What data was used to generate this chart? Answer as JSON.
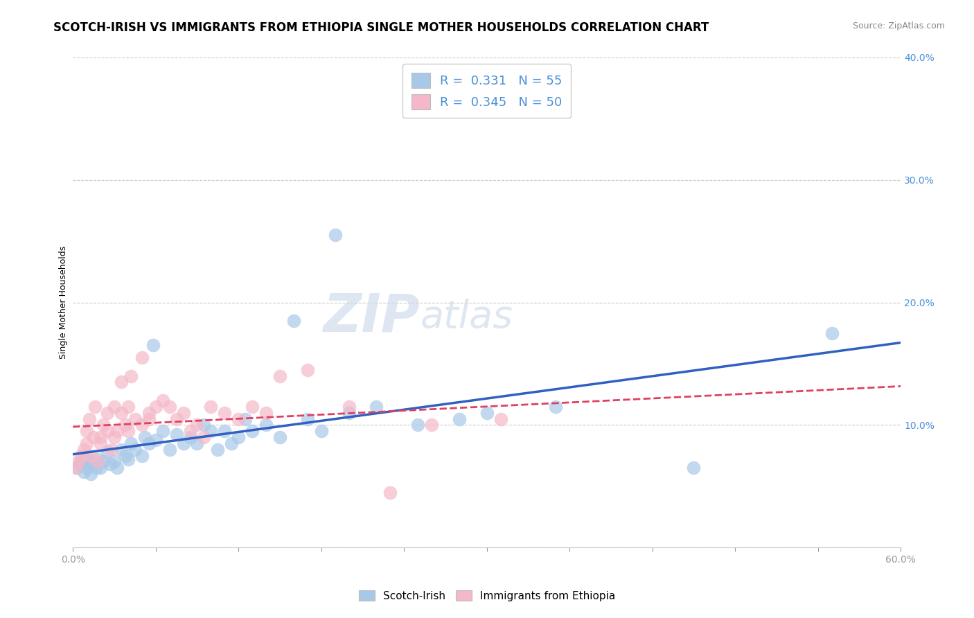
{
  "title": "SCOTCH-IRISH VS IMMIGRANTS FROM ETHIOPIA SINGLE MOTHER HOUSEHOLDS CORRELATION CHART",
  "source": "Source: ZipAtlas.com",
  "legend_label_1": "Scotch-Irish",
  "legend_label_2": "Immigrants from Ethiopia",
  "R1": 0.331,
  "N1": 55,
  "R2": 0.345,
  "N2": 50,
  "color_blue": "#a8c8e8",
  "color_pink": "#f4b8c8",
  "color_blue_line": "#3060c0",
  "color_pink_line": "#e04060",
  "watermark_zip": "ZIP",
  "watermark_atlas": "atlas",
  "blue_points": [
    [
      0.3,
      6.5
    ],
    [
      0.5,
      6.8
    ],
    [
      0.6,
      7.0
    ],
    [
      0.8,
      6.2
    ],
    [
      1.0,
      6.5
    ],
    [
      1.0,
      7.5
    ],
    [
      1.2,
      7.0
    ],
    [
      1.3,
      6.0
    ],
    [
      1.5,
      6.8
    ],
    [
      1.7,
      6.5
    ],
    [
      1.8,
      7.2
    ],
    [
      2.0,
      6.5
    ],
    [
      2.2,
      7.0
    ],
    [
      2.5,
      7.8
    ],
    [
      2.7,
      6.8
    ],
    [
      3.0,
      7.0
    ],
    [
      3.2,
      6.5
    ],
    [
      3.5,
      8.0
    ],
    [
      3.8,
      7.5
    ],
    [
      4.0,
      7.2
    ],
    [
      4.2,
      8.5
    ],
    [
      4.5,
      8.0
    ],
    [
      5.0,
      7.5
    ],
    [
      5.2,
      9.0
    ],
    [
      5.5,
      8.5
    ],
    [
      5.8,
      16.5
    ],
    [
      6.0,
      8.8
    ],
    [
      6.5,
      9.5
    ],
    [
      7.0,
      8.0
    ],
    [
      7.5,
      9.2
    ],
    [
      8.0,
      8.5
    ],
    [
      8.5,
      9.0
    ],
    [
      9.0,
      8.5
    ],
    [
      9.5,
      10.0
    ],
    [
      10.0,
      9.5
    ],
    [
      10.5,
      8.0
    ],
    [
      11.0,
      9.5
    ],
    [
      11.5,
      8.5
    ],
    [
      12.0,
      9.0
    ],
    [
      12.5,
      10.5
    ],
    [
      13.0,
      9.5
    ],
    [
      14.0,
      10.0
    ],
    [
      15.0,
      9.0
    ],
    [
      16.0,
      18.5
    ],
    [
      17.0,
      10.5
    ],
    [
      18.0,
      9.5
    ],
    [
      19.0,
      25.5
    ],
    [
      20.0,
      11.0
    ],
    [
      22.0,
      11.5
    ],
    [
      25.0,
      10.0
    ],
    [
      28.0,
      10.5
    ],
    [
      30.0,
      11.0
    ],
    [
      35.0,
      11.5
    ],
    [
      45.0,
      6.5
    ],
    [
      55.0,
      17.5
    ]
  ],
  "pink_points": [
    [
      0.2,
      6.5
    ],
    [
      0.4,
      7.0
    ],
    [
      0.6,
      7.5
    ],
    [
      0.8,
      8.0
    ],
    [
      1.0,
      8.5
    ],
    [
      1.0,
      9.5
    ],
    [
      1.2,
      10.5
    ],
    [
      1.3,
      7.5
    ],
    [
      1.5,
      9.0
    ],
    [
      1.6,
      11.5
    ],
    [
      1.8,
      7.0
    ],
    [
      2.0,
      8.5
    ],
    [
      2.0,
      9.0
    ],
    [
      2.2,
      10.0
    ],
    [
      2.5,
      9.5
    ],
    [
      2.5,
      11.0
    ],
    [
      2.8,
      8.0
    ],
    [
      3.0,
      9.0
    ],
    [
      3.0,
      11.5
    ],
    [
      3.2,
      9.5
    ],
    [
      3.5,
      11.0
    ],
    [
      3.5,
      13.5
    ],
    [
      3.8,
      10.0
    ],
    [
      4.0,
      9.5
    ],
    [
      4.0,
      11.5
    ],
    [
      4.2,
      14.0
    ],
    [
      4.5,
      10.5
    ],
    [
      5.0,
      10.0
    ],
    [
      5.0,
      15.5
    ],
    [
      5.5,
      11.0
    ],
    [
      5.5,
      10.5
    ],
    [
      6.0,
      11.5
    ],
    [
      6.5,
      12.0
    ],
    [
      7.0,
      11.5
    ],
    [
      7.5,
      10.5
    ],
    [
      8.0,
      11.0
    ],
    [
      8.5,
      9.5
    ],
    [
      9.0,
      10.0
    ],
    [
      9.5,
      9.0
    ],
    [
      10.0,
      11.5
    ],
    [
      11.0,
      11.0
    ],
    [
      12.0,
      10.5
    ],
    [
      13.0,
      11.5
    ],
    [
      14.0,
      11.0
    ],
    [
      15.0,
      14.0
    ],
    [
      17.0,
      14.5
    ],
    [
      20.0,
      11.5
    ],
    [
      23.0,
      4.5
    ],
    [
      26.0,
      10.0
    ],
    [
      31.0,
      10.5
    ]
  ],
  "xmin": 0.0,
  "xmax": 60.0,
  "ymin": 0.0,
  "ymax": 40.0,
  "yticks": [
    0,
    10,
    20,
    30,
    40
  ],
  "ytick_labels": [
    "",
    "10.0%",
    "20.0%",
    "30.0%",
    "40.0%"
  ],
  "xticks": [
    0,
    6,
    12,
    18,
    24,
    30,
    36,
    42,
    48,
    54,
    60
  ],
  "grid_color": "#cccccc",
  "background_color": "#ffffff",
  "title_fontsize": 12,
  "axis_label_fontsize": 9,
  "tick_fontsize": 10,
  "legend_fontsize": 13,
  "watermark_fontsize_big": 55,
  "watermark_fontsize_small": 40
}
